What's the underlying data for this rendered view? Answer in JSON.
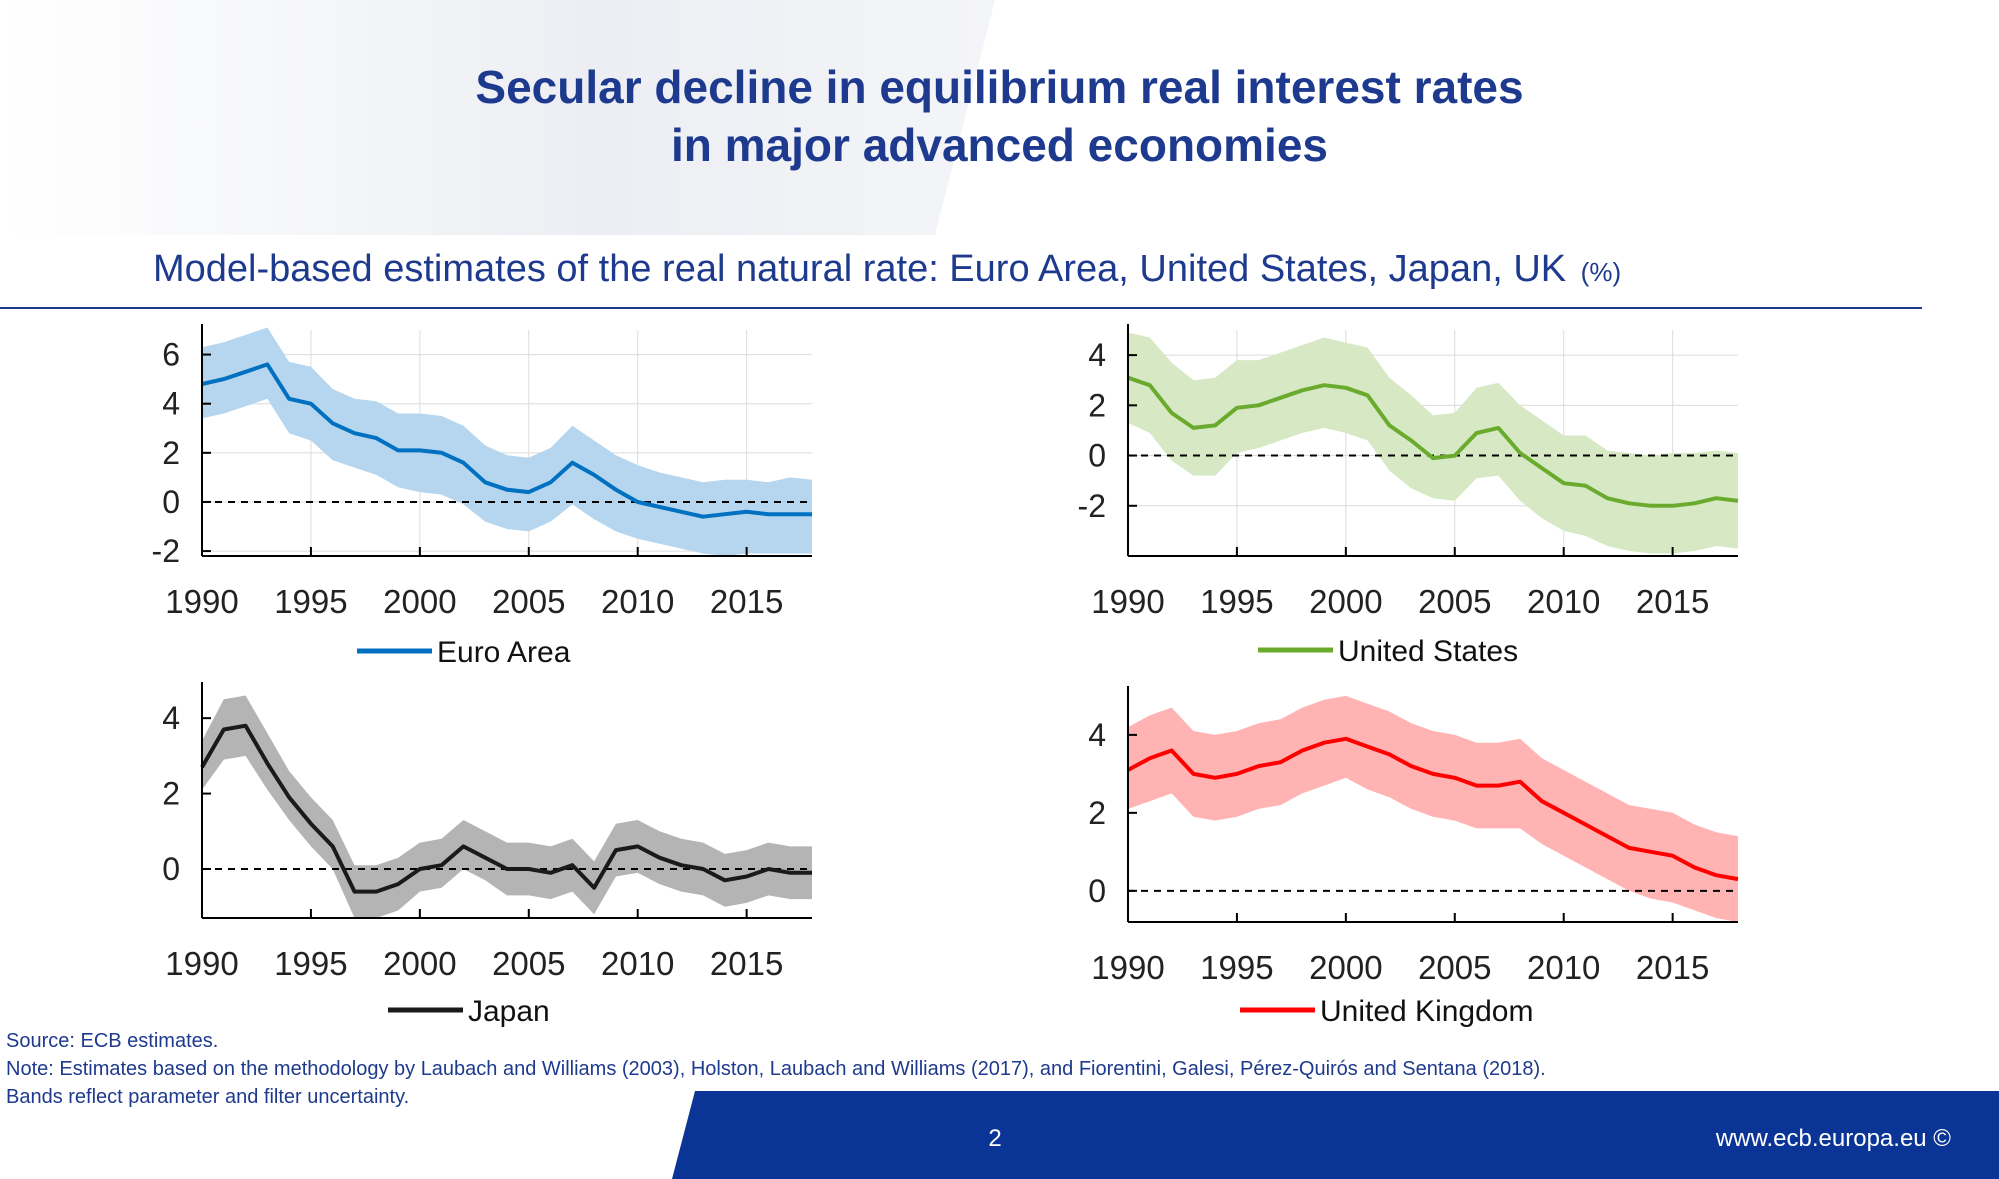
{
  "title_line1": "Secular decline in equilibrium real interest rates",
  "title_line2": "in major advanced economies",
  "subtitle": "Model-based estimates of the real natural rate: Euro Area, United States, Japan, UK",
  "subtitle_unit": "(%)",
  "source": "Source: ECB estimates.",
  "note_line1": "Note: Estimates based on the methodology by Laubach and Williams (2003), Holston, Laubach and Williams (2017), and Fiorentini, Galesi, Pérez-Quirós and Sentana (2018).",
  "note_line2": "Bands reflect parameter and filter uncertainty.",
  "footer": {
    "page": "2",
    "url": "www.ecb.europa.eu ©"
  },
  "colors": {
    "brand": "#1e3a8f",
    "footer": "#0a3597"
  },
  "chart_data": [
    {
      "type": "line",
      "panel": "top-left",
      "legend_position": "bottom",
      "grid": true,
      "xlim": [
        1990,
        2018
      ],
      "ylim": [
        -2.2,
        7
      ],
      "x_ticks": [
        1990,
        1995,
        2000,
        2005,
        2010,
        2015
      ],
      "y_ticks": [
        -2,
        0,
        2,
        4,
        6
      ],
      "reference_line": 0,
      "color": "#0070c0",
      "band_color": "#b5d6ee",
      "series": [
        {
          "name": "Euro Area",
          "x": [
            1990,
            1991,
            1992,
            1993,
            1994,
            1995,
            1996,
            1997,
            1998,
            1999,
            2000,
            2001,
            2002,
            2003,
            2004,
            2005,
            2006,
            2007,
            2008,
            2009,
            2010,
            2011,
            2012,
            2013,
            2014,
            2015,
            2016,
            2017,
            2018
          ],
          "values": [
            4.8,
            5.0,
            5.3,
            5.6,
            4.2,
            4.0,
            3.2,
            2.8,
            2.6,
            2.1,
            2.1,
            2.0,
            1.6,
            0.8,
            0.5,
            0.4,
            0.8,
            1.6,
            1.1,
            0.5,
            0.0,
            -0.2,
            -0.4,
            -0.6,
            -0.5,
            -0.4,
            -0.5,
            -0.5,
            -0.5
          ],
          "lower": [
            3.4,
            3.6,
            3.9,
            4.2,
            2.8,
            2.5,
            1.7,
            1.4,
            1.1,
            0.6,
            0.4,
            0.3,
            -0.1,
            -0.8,
            -1.1,
            -1.2,
            -0.8,
            -0.1,
            -0.7,
            -1.2,
            -1.5,
            -1.7,
            -1.9,
            -2.1,
            -2.2,
            -2.1,
            -2.1,
            -2.1,
            -2.1
          ],
          "upper": [
            6.3,
            6.5,
            6.8,
            7.1,
            5.7,
            5.5,
            4.6,
            4.2,
            4.1,
            3.6,
            3.6,
            3.5,
            3.1,
            2.3,
            1.9,
            1.8,
            2.2,
            3.1,
            2.5,
            1.9,
            1.5,
            1.2,
            1.0,
            0.8,
            0.9,
            0.9,
            0.8,
            1.0,
            0.9
          ]
        }
      ]
    },
    {
      "type": "line",
      "panel": "top-right",
      "legend_position": "bottom",
      "grid": true,
      "xlim": [
        1990,
        2018
      ],
      "ylim": [
        -4,
        5
      ],
      "x_ticks": [
        1990,
        1995,
        2000,
        2005,
        2010,
        2015
      ],
      "y_ticks": [
        -2,
        0,
        2,
        4
      ],
      "reference_line": 0,
      "color": "#6aab2e",
      "band_color": "#d6e9c4",
      "series": [
        {
          "name": "United States",
          "x": [
            1990,
            1991,
            1992,
            1993,
            1994,
            1995,
            1996,
            1997,
            1998,
            1999,
            2000,
            2001,
            2002,
            2003,
            2004,
            2005,
            2006,
            2007,
            2008,
            2009,
            2010,
            2011,
            2012,
            2013,
            2014,
            2015,
            2016,
            2017,
            2018
          ],
          "values": [
            3.1,
            2.8,
            1.7,
            1.1,
            1.2,
            1.9,
            2.0,
            2.3,
            2.6,
            2.8,
            2.7,
            2.4,
            1.2,
            0.6,
            -0.1,
            0.0,
            0.9,
            1.1,
            0.1,
            -0.5,
            -1.1,
            -1.2,
            -1.7,
            -1.9,
            -2.0,
            -2.0,
            -1.9,
            -1.7,
            -1.8
          ],
          "lower": [
            1.3,
            0.9,
            -0.2,
            -0.8,
            -0.8,
            0.1,
            0.3,
            0.6,
            0.9,
            1.1,
            0.9,
            0.6,
            -0.6,
            -1.3,
            -1.7,
            -1.8,
            -0.9,
            -0.8,
            -1.8,
            -2.5,
            -3.0,
            -3.2,
            -3.6,
            -3.8,
            -3.9,
            -3.9,
            -3.8,
            -3.6,
            -3.7
          ],
          "upper": [
            4.9,
            4.7,
            3.7,
            3.0,
            3.1,
            3.8,
            3.8,
            4.1,
            4.4,
            4.7,
            4.5,
            4.3,
            3.1,
            2.4,
            1.6,
            1.7,
            2.7,
            2.9,
            2.0,
            1.4,
            0.8,
            0.8,
            0.2,
            0.1,
            0.0,
            0.1,
            0.1,
            0.2,
            0.1
          ]
        }
      ]
    },
    {
      "type": "line",
      "panel": "bottom-left",
      "legend_position": "bottom",
      "grid": false,
      "xlim": [
        1990,
        2018
      ],
      "ylim": [
        -1.3,
        4.8
      ],
      "x_ticks": [
        1990,
        1995,
        2000,
        2005,
        2010,
        2015
      ],
      "y_ticks": [
        0,
        2,
        4
      ],
      "reference_line": 0,
      "color": "#1a1a1a",
      "band_color": "#b4b4b4",
      "series": [
        {
          "name": "Japan",
          "x": [
            1990,
            1991,
            1992,
            1993,
            1994,
            1995,
            1996,
            1997,
            1998,
            1999,
            2000,
            2001,
            2002,
            2003,
            2004,
            2005,
            2006,
            2007,
            2008,
            2009,
            2010,
            2011,
            2012,
            2013,
            2014,
            2015,
            2016,
            2017,
            2018
          ],
          "values": [
            2.7,
            3.7,
            3.8,
            2.8,
            1.9,
            1.2,
            0.6,
            -0.6,
            -0.6,
            -0.4,
            0.0,
            0.1,
            0.6,
            0.3,
            0.0,
            0.0,
            -0.1,
            0.1,
            -0.5,
            0.5,
            0.6,
            0.3,
            0.1,
            0.0,
            -0.3,
            -0.2,
            0.0,
            -0.1,
            -0.1
          ],
          "lower": [
            2.1,
            2.9,
            3.0,
            2.1,
            1.3,
            0.6,
            0.0,
            -1.3,
            -1.3,
            -1.1,
            -0.6,
            -0.5,
            0.0,
            -0.3,
            -0.7,
            -0.7,
            -0.8,
            -0.6,
            -1.2,
            -0.2,
            -0.1,
            -0.4,
            -0.6,
            -0.7,
            -1.0,
            -0.9,
            -0.7,
            -0.8,
            -0.8
          ],
          "upper": [
            3.4,
            4.5,
            4.6,
            3.6,
            2.6,
            1.9,
            1.3,
            0.1,
            0.1,
            0.3,
            0.7,
            0.8,
            1.3,
            1.0,
            0.7,
            0.7,
            0.6,
            0.8,
            0.2,
            1.2,
            1.3,
            1.0,
            0.8,
            0.7,
            0.4,
            0.5,
            0.7,
            0.6,
            0.6
          ]
        }
      ]
    },
    {
      "type": "line",
      "panel": "bottom-right",
      "legend_position": "bottom",
      "grid": false,
      "xlim": [
        1990,
        2018
      ],
      "ylim": [
        -0.8,
        5.1
      ],
      "x_ticks": [
        1990,
        1995,
        2000,
        2005,
        2010,
        2015
      ],
      "y_ticks": [
        0,
        2,
        4
      ],
      "reference_line": 0,
      "color": "#ff0000",
      "band_color": "#ffb3b3",
      "series": [
        {
          "name": "United Kingdom",
          "x": [
            1990,
            1991,
            1992,
            1993,
            1994,
            1995,
            1996,
            1997,
            1998,
            1999,
            2000,
            2001,
            2002,
            2003,
            2004,
            2005,
            2006,
            2007,
            2008,
            2009,
            2010,
            2011,
            2012,
            2013,
            2014,
            2015,
            2016,
            2017,
            2018
          ],
          "values": [
            3.1,
            3.4,
            3.6,
            3.0,
            2.9,
            3.0,
            3.2,
            3.3,
            3.6,
            3.8,
            3.9,
            3.7,
            3.5,
            3.2,
            3.0,
            2.9,
            2.7,
            2.7,
            2.8,
            2.3,
            2.0,
            1.7,
            1.4,
            1.1,
            1.0,
            0.9,
            0.6,
            0.4,
            0.3
          ],
          "lower": [
            2.1,
            2.3,
            2.5,
            1.9,
            1.8,
            1.9,
            2.1,
            2.2,
            2.5,
            2.7,
            2.9,
            2.6,
            2.4,
            2.1,
            1.9,
            1.8,
            1.6,
            1.6,
            1.6,
            1.2,
            0.9,
            0.6,
            0.3,
            0.0,
            -0.2,
            -0.3,
            -0.5,
            -0.7,
            -0.8
          ],
          "upper": [
            4.2,
            4.5,
            4.7,
            4.1,
            4.0,
            4.1,
            4.3,
            4.4,
            4.7,
            4.9,
            5.0,
            4.8,
            4.6,
            4.3,
            4.1,
            4.0,
            3.8,
            3.8,
            3.9,
            3.4,
            3.1,
            2.8,
            2.5,
            2.2,
            2.1,
            2.0,
            1.7,
            1.5,
            1.4
          ]
        }
      ]
    }
  ]
}
